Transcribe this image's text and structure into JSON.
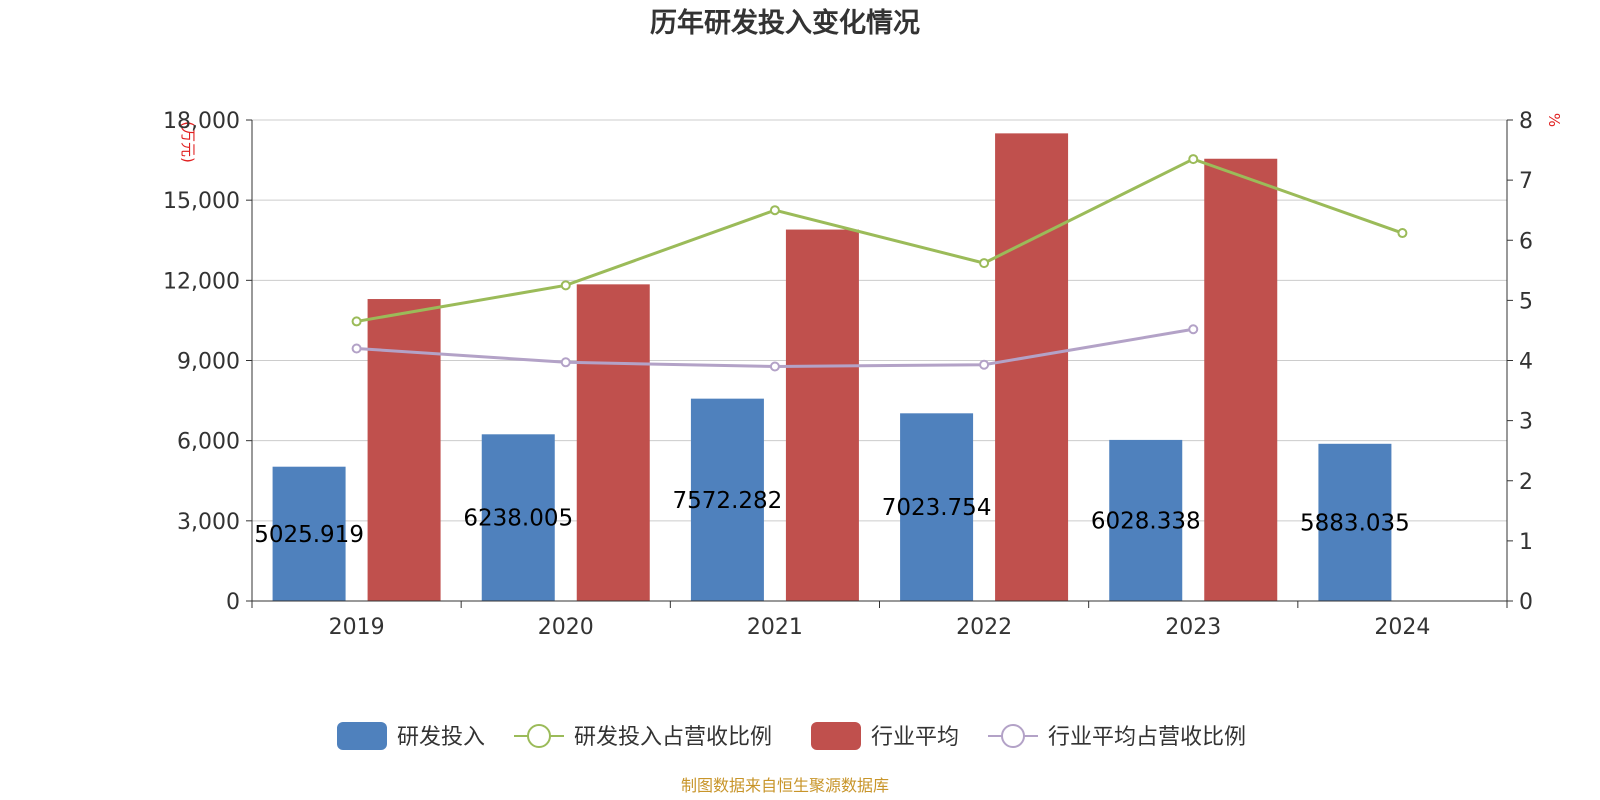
{
  "chart_data": {
    "type": "bar",
    "title": "历年研发投入变化情况",
    "categories": [
      "2019",
      "2020",
      "2021",
      "2022",
      "2023",
      "2024"
    ],
    "y_left": {
      "unit": "(万元)",
      "ylim": [
        0,
        18000
      ],
      "ticks": [
        "0",
        "3,000",
        "6,000",
        "9,000",
        "12,000",
        "15,000",
        "18,000"
      ]
    },
    "y_right": {
      "unit": "%",
      "ylim": [
        0,
        8
      ],
      "ticks": [
        "0",
        "1",
        "2",
        "3",
        "4",
        "5",
        "6",
        "7",
        "8"
      ]
    },
    "series": [
      {
        "name": "研发投入",
        "kind": "bar",
        "axis": "left",
        "color": "#4f81bd",
        "values": [
          5025.919,
          6238.005,
          7572.282,
          7023.754,
          6028.338,
          5883.035
        ],
        "labels": [
          "5025.919",
          "6238.005",
          "7572.282",
          "7023.754",
          "6028.338",
          "5883.035"
        ]
      },
      {
        "name": "研发投入占营收比例",
        "kind": "line",
        "axis": "right",
        "color": "#9bbb59",
        "values": [
          4.65,
          5.25,
          6.5,
          5.62,
          7.35,
          6.12
        ]
      },
      {
        "name": "行业平均",
        "kind": "bar",
        "axis": "left",
        "color": "#c0504d",
        "values": [
          11300,
          11850,
          13900,
          17500,
          16550,
          null
        ]
      },
      {
        "name": "行业平均占营收比例",
        "kind": "line",
        "axis": "right",
        "color": "#b3a2c7",
        "values": [
          4.2,
          3.97,
          3.9,
          3.93,
          4.52,
          null
        ]
      }
    ],
    "grid": true,
    "legend_position": "bottom",
    "source": "制图数据来自恒生聚源数据库"
  }
}
